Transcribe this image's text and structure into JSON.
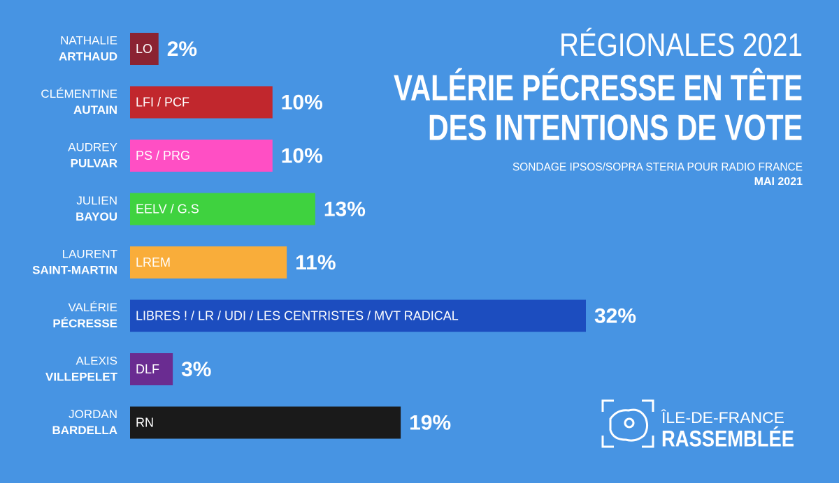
{
  "chart_data": {
    "type": "bar",
    "orientation": "horizontal",
    "title": "RÉGIONALES 2021",
    "headline": [
      "VALÉRIE PÉCRESSE EN TÊTE",
      "DES INTENTIONS DE VOTE"
    ],
    "subtitle": "SONDAGE IPSOS/SOPRA STERIA POUR RADIO FRANCE",
    "date": "MAI 2021",
    "categories": [
      [
        "NATHALIE",
        "ARTHAUD"
      ],
      [
        "CLÉMENTINE",
        "AUTAIN"
      ],
      [
        "AUDREY",
        "PULVAR"
      ],
      [
        "JULIEN",
        "BAYOU"
      ],
      [
        "LAURENT",
        "SAINT-MARTIN"
      ],
      [
        "VALÉRIE",
        "PÉCRESSE"
      ],
      [
        "ALEXIS",
        "VILLEPELET"
      ],
      [
        "JORDAN",
        "BARDELLA"
      ]
    ],
    "party_labels": [
      "LO",
      "LFI / PCF",
      "PS / PRG",
      "EELV / G.S",
      "LREM",
      "LIBRES ! / LR / UDI / LES CENTRISTES / MVT RADICAL",
      "DLF",
      "RN"
    ],
    "values": [
      2,
      10,
      10,
      13,
      11,
      32,
      3,
      19
    ],
    "value_labels": [
      "2%",
      "10%",
      "10%",
      "13%",
      "11%",
      "32%",
      "3%",
      "19%"
    ],
    "colors": [
      "#8b2332",
      "#c1272d",
      "#ff4fc4",
      "#3fd23f",
      "#f9ad3a",
      "#1c4dbf",
      "#6a2c91",
      "#1a1a1a"
    ],
    "logo": [
      "ÎLE-DE-FRANCE",
      "RASSEMBLÉE"
    ]
  }
}
